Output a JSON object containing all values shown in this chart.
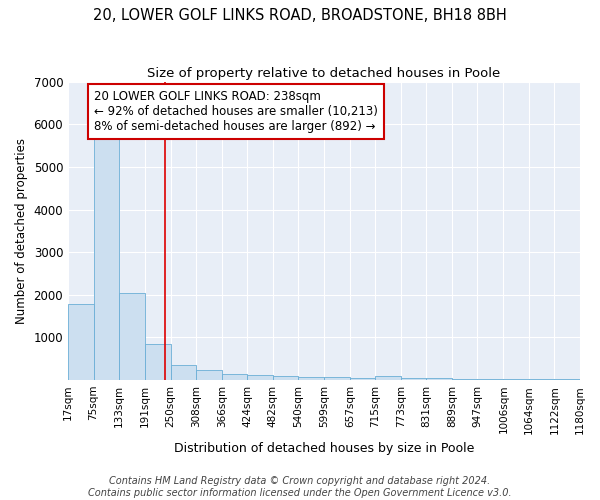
{
  "title": "20, LOWER GOLF LINKS ROAD, BROADSTONE, BH18 8BH",
  "subtitle": "Size of property relative to detached houses in Poole",
  "xlabel": "Distribution of detached houses by size in Poole",
  "ylabel": "Number of detached properties",
  "bar_color": "#ccdff0",
  "bar_edge_color": "#6aaed6",
  "bin_labels": [
    "17sqm",
    "75sqm",
    "133sqm",
    "191sqm",
    "250sqm",
    "308sqm",
    "366sqm",
    "424sqm",
    "482sqm",
    "540sqm",
    "599sqm",
    "657sqm",
    "715sqm",
    "773sqm",
    "831sqm",
    "889sqm",
    "947sqm",
    "1006sqm",
    "1064sqm",
    "1122sqm",
    "1180sqm"
  ],
  "bin_edges": [
    17,
    75,
    133,
    191,
    250,
    308,
    366,
    424,
    482,
    540,
    599,
    657,
    715,
    773,
    831,
    889,
    947,
    1006,
    1064,
    1122,
    1180
  ],
  "bar_heights": [
    1780,
    5750,
    2050,
    850,
    360,
    225,
    140,
    110,
    90,
    75,
    65,
    55,
    100,
    45,
    40,
    35,
    30,
    25,
    20,
    18
  ],
  "property_size": 238,
  "red_line_color": "#dd0000",
  "annotation_text": "20 LOWER GOLF LINKS ROAD: 238sqm\n← 92% of detached houses are smaller (10,213)\n8% of semi-detached houses are larger (892) →",
  "annotation_box_color": "#ffffff",
  "annotation_box_edge_color": "#cc0000",
  "ylim": [
    0,
    7000
  ],
  "yticks": [
    0,
    1000,
    2000,
    3000,
    4000,
    5000,
    6000,
    7000
  ],
  "background_color": "#e8eef7",
  "grid_color": "#ffffff",
  "footer_text": "Contains HM Land Registry data © Crown copyright and database right 2024.\nContains public sector information licensed under the Open Government Licence v3.0.",
  "title_fontsize": 10.5,
  "subtitle_fontsize": 9.5,
  "annotation_fontsize": 8.5,
  "footer_fontsize": 7
}
